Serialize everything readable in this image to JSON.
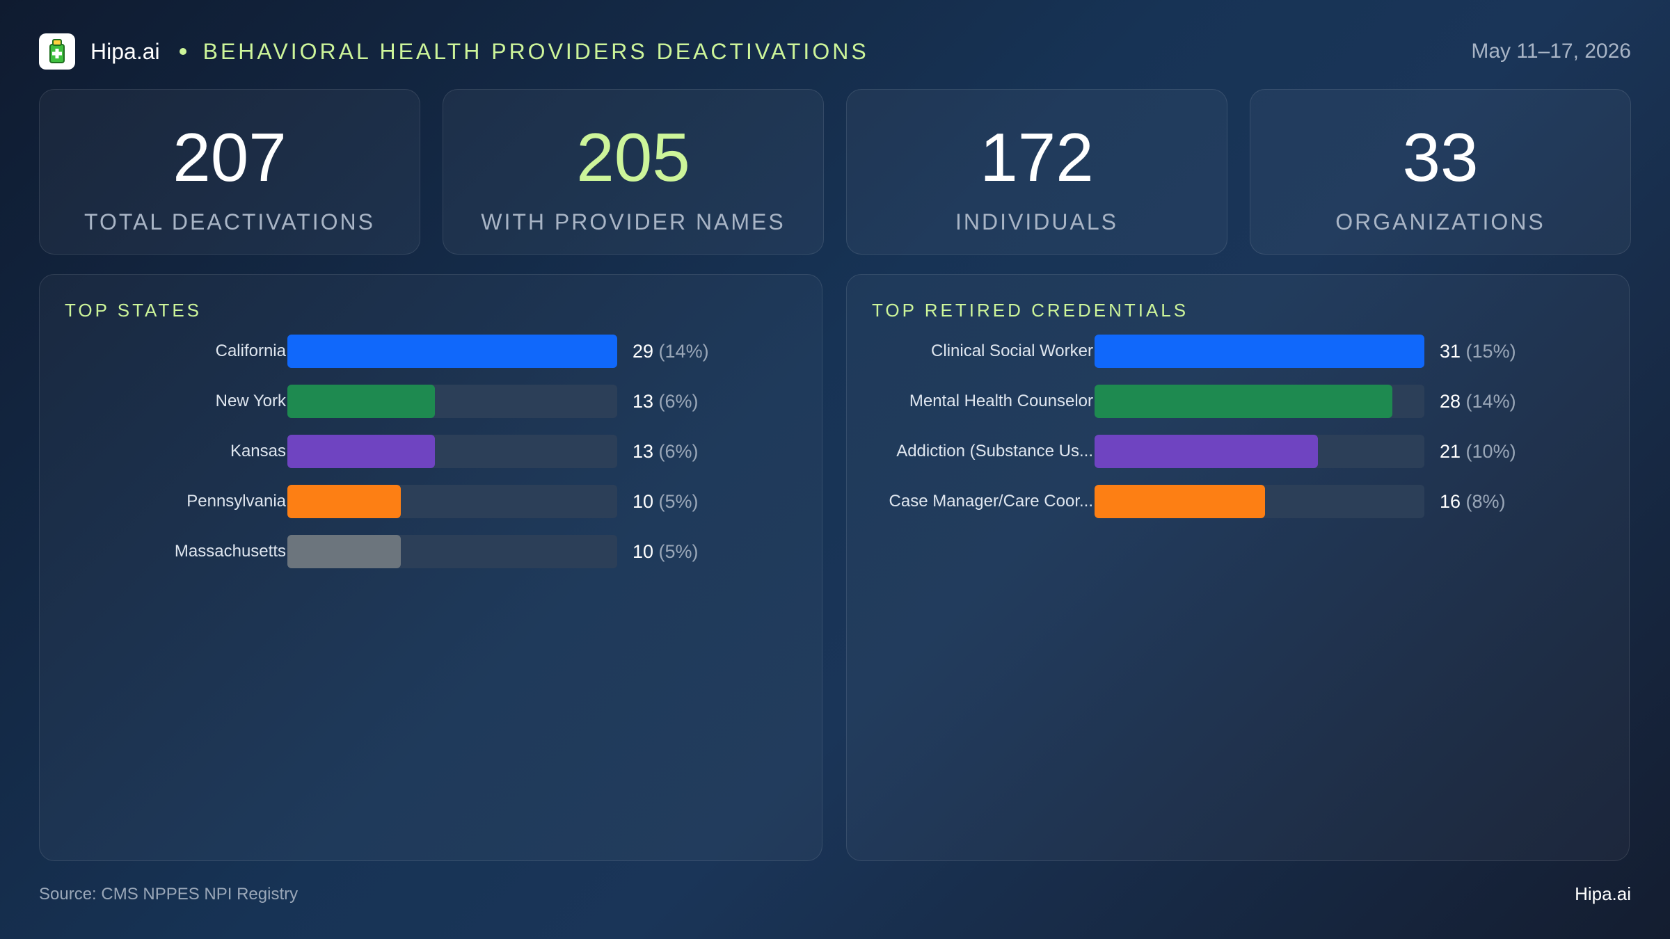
{
  "header": {
    "brand": "Hipa.ai",
    "title": "BEHAVIORAL HEALTH PROVIDERS DEACTIVATIONS",
    "date_range": "May 11–17, 2026"
  },
  "kpis": [
    {
      "value": "207",
      "label": "TOTAL DEACTIVATIONS"
    },
    {
      "value": "205",
      "label": "WITH PROVIDER NAMES"
    },
    {
      "value": "172",
      "label": "INDIVIDUALS"
    },
    {
      "value": "33",
      "label": "ORGANIZATIONS"
    }
  ],
  "colors": {
    "accent": "#cdf59a",
    "bar_blue": "#1068fb",
    "bar_green": "#1e8a50",
    "bar_purple": "#6f44c1",
    "bar_orange": "#fd7f14",
    "bar_gray": "#6c757d",
    "track": "#2c3f58"
  },
  "chart_data": [
    {
      "type": "bar",
      "orientation": "horizontal",
      "title": "TOP STATES",
      "categories": [
        "California",
        "New York",
        "Kansas",
        "Pennsylvania",
        "Massachusetts"
      ],
      "values": [
        29,
        13,
        13,
        10,
        10
      ],
      "percent_labels": [
        "(14%)",
        "(6%)",
        "(6%)",
        "(5%)",
        "(5%)"
      ],
      "colors": [
        "#1068fb",
        "#1e8a50",
        "#6f44c1",
        "#fd7f14",
        "#6c757d"
      ],
      "xlim": [
        0,
        29
      ]
    },
    {
      "type": "bar",
      "orientation": "horizontal",
      "title": "TOP RETIRED CREDENTIALS",
      "categories": [
        "Clinical Social Worker",
        "Mental Health Counselor",
        "Addiction (Substance Us...",
        "Case Manager/Care Coor..."
      ],
      "values": [
        31,
        28,
        21,
        16
      ],
      "percent_labels": [
        "(15%)",
        "(14%)",
        "(10%)",
        "(8%)"
      ],
      "colors": [
        "#1068fb",
        "#1e8a50",
        "#6f44c1",
        "#fd7f14"
      ],
      "xlim": [
        0,
        31
      ]
    }
  ],
  "footer": {
    "source": "Source: CMS NPPES NPI Registry",
    "brand": "Hipa.ai"
  }
}
